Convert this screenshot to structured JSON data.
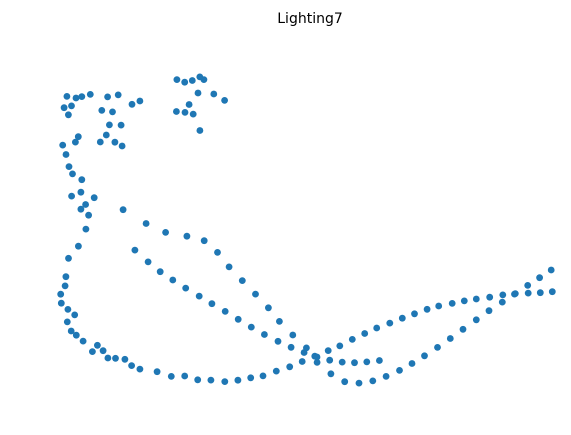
{
  "chart_data": {
    "type": "scatter",
    "title": "Lighting7",
    "xlabel": "",
    "ylabel": "",
    "axes_visible": false,
    "grid": false,
    "legend": "none",
    "xlim": [
      0,
      100
    ],
    "ylim": [
      0,
      100
    ],
    "marker_color": "#1f77b4",
    "series": [
      {
        "points": [
          [
            26.32,
            88.59
          ],
          [
            24.79,
            88.1
          ],
          [
            28.66,
            88.84
          ],
          [
            27.84,
            89.6
          ],
          [
            23.22,
            88.84
          ],
          [
            27.48,
            85.07
          ],
          [
            30.67,
            84.79
          ],
          [
            32.84,
            82.99
          ],
          [
            25.68,
            81.84
          ],
          [
            23.12,
            79.86
          ],
          [
            27.85,
            74.51
          ],
          [
            26.5,
            79.13
          ],
          [
            24.84,
            79.61
          ],
          [
            0.98,
            84.12
          ],
          [
            2.82,
            83.67
          ],
          [
            5.72,
            84.68
          ],
          [
            4.01,
            84.06
          ],
          [
            0.42,
            80.94
          ],
          [
            1.91,
            81.44
          ],
          [
            1.29,
            78.93
          ],
          [
            9.22,
            83.96
          ],
          [
            11.35,
            84.53
          ],
          [
            15.74,
            82.81
          ],
          [
            14.15,
            81.89
          ],
          [
            10.21,
            79.75
          ],
          [
            8.04,
            80.18
          ],
          [
            9.57,
            76.08
          ],
          [
            11.93,
            76.02
          ],
          [
            8.95,
            73.25
          ],
          [
            10.68,
            71.2
          ],
          [
            7.74,
            71.27
          ],
          [
            12.15,
            70.14
          ],
          [
            3.3,
            72.75
          ],
          [
            2.7,
            71.25
          ],
          [
            0.14,
            70.4
          ],
          [
            0.8,
            67.76
          ],
          [
            1.42,
            64.35
          ],
          [
            2.13,
            62.29
          ],
          [
            4.01,
            60.64
          ],
          [
            3.81,
            57.14
          ],
          [
            1.93,
            56.02
          ],
          [
            6.51,
            55.59
          ],
          [
            4.76,
            53.66
          ],
          [
            3.82,
            52.35
          ],
          [
            5.37,
            50.66
          ],
          [
            4.83,
            46.74
          ],
          [
            3.31,
            41.92
          ],
          [
            1.31,
            38.51
          ],
          [
            0.79,
            33.31
          ],
          [
            0.62,
            30.74
          ],
          [
            -0.27,
            28.39
          ],
          [
            -0.14,
            25.85
          ],
          [
            1.2,
            24.1
          ],
          [
            2.56,
            22.57
          ],
          [
            1.08,
            20.58
          ],
          [
            1.85,
            18.03
          ],
          [
            2.89,
            16.84
          ],
          [
            4.27,
            15.17
          ],
          [
            7.16,
            14.0
          ],
          [
            6.14,
            12.22
          ],
          [
            8.3,
            12.47
          ],
          [
            9.27,
            10.43
          ],
          [
            10.81,
            10.33
          ],
          [
            12.7,
            10.05
          ],
          [
            14.06,
            8.27
          ],
          [
            15.74,
            7.29
          ],
          [
            19.22,
            6.55
          ],
          [
            22.08,
            5.24
          ],
          [
            24.79,
            5.34
          ],
          [
            27.41,
            4.27
          ],
          [
            30.08,
            4.19
          ],
          [
            32.88,
            3.77
          ],
          [
            35.54,
            4.17
          ],
          [
            38.13,
            4.85
          ],
          [
            40.6,
            5.39
          ],
          [
            43.3,
            6.74
          ],
          [
            45.99,
            7.95
          ],
          [
            48.53,
            9.44
          ],
          [
            51.08,
            10.94
          ],
          [
            53.77,
            12.52
          ],
          [
            56.12,
            13.84
          ],
          [
            58.64,
            15.66
          ],
          [
            61.16,
            17.31
          ],
          [
            63.57,
            18.87
          ],
          [
            66.22,
            20.26
          ],
          [
            68.74,
            21.64
          ],
          [
            71.21,
            22.87
          ],
          [
            73.75,
            24.15
          ],
          [
            76.11,
            25.06
          ],
          [
            78.82,
            25.79
          ],
          [
            81.27,
            26.51
          ],
          [
            83.7,
            27.03
          ],
          [
            86.41,
            27.54
          ],
          [
            89.05,
            28.19
          ],
          [
            91.42,
            28.43
          ],
          [
            94.18,
            28.7
          ],
          [
            96.62,
            28.83
          ],
          [
            99.05,
            29.11
          ],
          [
            12.35,
            52.21
          ],
          [
            16.98,
            48.32
          ],
          [
            20.92,
            45.79
          ],
          [
            25.23,
            44.74
          ],
          [
            28.73,
            43.46
          ],
          [
            31.41,
            40.16
          ],
          [
            33.75,
            36.08
          ],
          [
            36.43,
            32.23
          ],
          [
            39.09,
            28.43
          ],
          [
            41.7,
            24.55
          ],
          [
            43.92,
            20.74
          ],
          [
            46.62,
            16.9
          ],
          [
            49.37,
            13.28
          ],
          [
            51.54,
            9.19
          ],
          [
            54.33,
            5.96
          ],
          [
            57.12,
            3.76
          ],
          [
            60.01,
            3.34
          ],
          [
            62.78,
            3.97
          ],
          [
            65.47,
            5.24
          ],
          [
            68.18,
            6.94
          ],
          [
            70.7,
            8.86
          ],
          [
            73.24,
            11.05
          ],
          [
            75.86,
            13.4
          ],
          [
            78.45,
            15.92
          ],
          [
            81.01,
            18.52
          ],
          [
            83.69,
            21.18
          ],
          [
            86.27,
            23.76
          ],
          [
            88.95,
            26.18
          ],
          [
            91.57,
            28.56
          ],
          [
            94.08,
            30.86
          ],
          [
            96.49,
            33.05
          ],
          [
            98.82,
            35.2
          ],
          [
            14.72,
            40.81
          ],
          [
            17.39,
            37.5
          ],
          [
            19.84,
            34.73
          ],
          [
            22.38,
            32.4
          ],
          [
            24.99,
            30.1
          ],
          [
            27.71,
            27.86
          ],
          [
            30.28,
            25.72
          ],
          [
            32.97,
            23.55
          ],
          [
            35.6,
            21.31
          ],
          [
            38.24,
            19.13
          ],
          [
            40.89,
            17.04
          ],
          [
            43.64,
            15.13
          ],
          [
            46.28,
            13.43
          ],
          [
            48.9,
            11.97
          ],
          [
            51.52,
            10.71
          ],
          [
            54.08,
            9.79
          ],
          [
            56.6,
            9.28
          ],
          [
            59.1,
            9.1
          ],
          [
            61.57,
            9.32
          ],
          [
            64.13,
            9.72
          ]
        ]
      }
    ]
  }
}
